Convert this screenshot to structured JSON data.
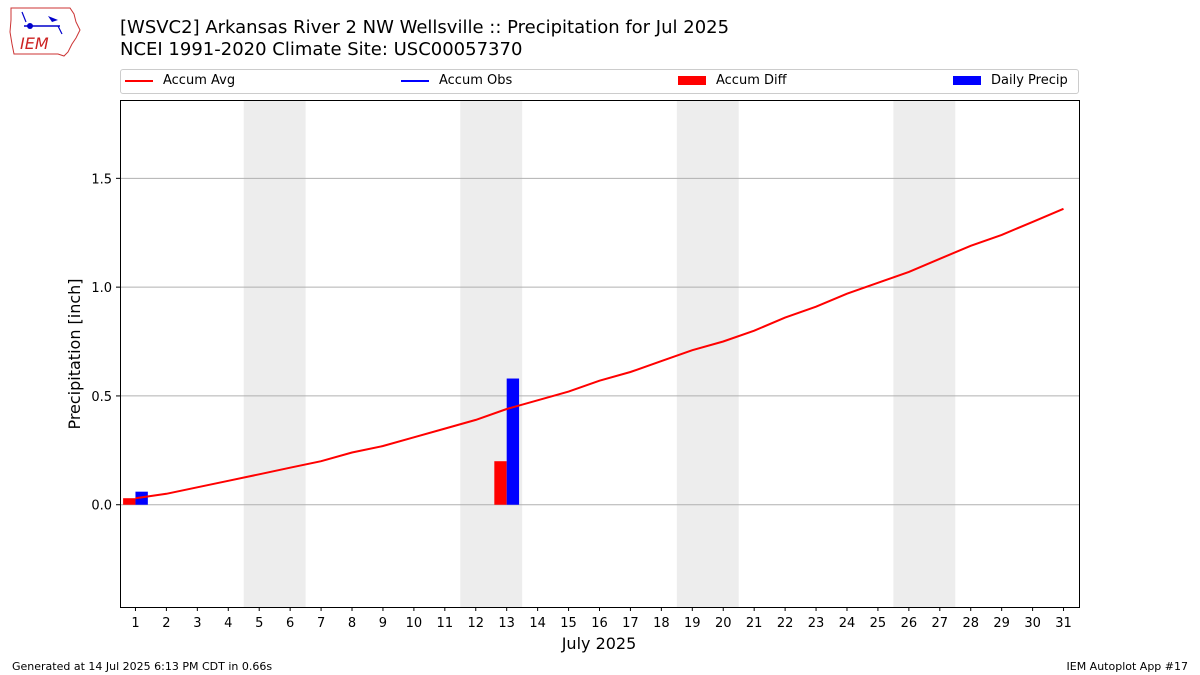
{
  "header": {
    "title_line1": "[WSVC2] Arkansas River 2 NW Wellsville :: Precipitation for Jul 2025",
    "title_line2": "NCEI 1991-2020 Climate Site: USC00057370",
    "logo_text": "IEM"
  },
  "legend": [
    {
      "label": "Accum Avg",
      "kind": "line",
      "color": "#ff0000"
    },
    {
      "label": "Accum Obs",
      "kind": "line",
      "color": "#0000ff"
    },
    {
      "label": "Accum Diff",
      "kind": "box",
      "color": "#ff0000"
    },
    {
      "label": "Daily Precip",
      "kind": "box",
      "color": "#0000ff"
    }
  ],
  "footer": {
    "left": "Generated at 14 Jul 2025 6:13 PM CDT in 0.66s",
    "right": "IEM Autoplot App #17"
  },
  "chart_data": {
    "type": "line",
    "title": "[WSVC2] Arkansas River 2 NW Wellsville :: Precipitation for Jul 2025",
    "xlabel": "July 2025",
    "ylabel": "Precipitation [inch]",
    "xlim": [
      0.5,
      31.5
    ],
    "ylim": [
      -0.47,
      1.86
    ],
    "yticks": [
      0.0,
      0.5,
      1.0,
      1.5
    ],
    "ytick_labels": [
      "0.0",
      "0.5",
      "1.0",
      "1.5"
    ],
    "x_tick_labels": [
      "1",
      "2",
      "3",
      "4",
      "5",
      "6",
      "7",
      "8",
      "9",
      "10",
      "11",
      "12",
      "13",
      "14",
      "15",
      "16",
      "17",
      "18",
      "19",
      "20",
      "21",
      "22",
      "23",
      "24",
      "25",
      "26",
      "27",
      "28",
      "29",
      "30",
      "31"
    ],
    "grid": "horizontal",
    "legend_position": "top",
    "weekend_shading": [
      [
        4.5,
        6.5
      ],
      [
        11.5,
        13.5
      ],
      [
        18.5,
        20.5
      ],
      [
        25.5,
        27.5
      ]
    ],
    "days": [
      1,
      2,
      3,
      4,
      5,
      6,
      7,
      8,
      9,
      10,
      11,
      12,
      13,
      14,
      15,
      16,
      17,
      18,
      19,
      20,
      21,
      22,
      23,
      24,
      25,
      26,
      27,
      28,
      29,
      30,
      31
    ],
    "series": [
      {
        "name": "Accum Avg",
        "color": "#ff0000",
        "values": [
          0.03,
          0.05,
          0.08,
          0.11,
          0.14,
          0.17,
          0.2,
          0.24,
          0.27,
          0.31,
          0.35,
          0.39,
          0.44,
          0.48,
          0.52,
          0.57,
          0.61,
          0.66,
          0.71,
          0.75,
          0.8,
          0.86,
          0.91,
          0.97,
          1.02,
          1.07,
          1.13,
          1.19,
          1.24,
          1.3,
          1.36
        ]
      },
      {
        "name": "Accum Diff",
        "color": "#ff0000",
        "type": "bar",
        "days": [
          1,
          13
        ],
        "values": [
          0.03,
          0.2
        ]
      },
      {
        "name": "Daily Precip",
        "color": "#0000ff",
        "type": "bar",
        "days": [
          1,
          13
        ],
        "values": [
          0.06,
          0.58
        ]
      }
    ]
  }
}
